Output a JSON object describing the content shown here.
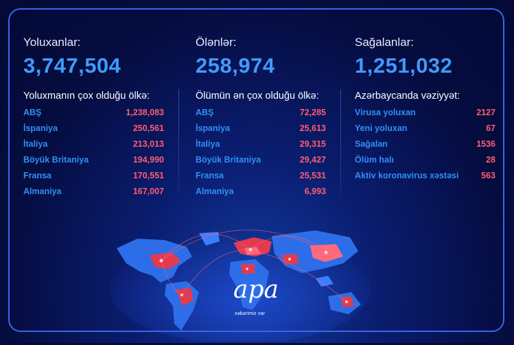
{
  "infected": {
    "label": "Yoluxanlar:",
    "total": "3,747,504",
    "subtitle": "Yoluxmanın çox olduğu ölkə:",
    "rows": [
      {
        "name": "ABŞ",
        "value": "1,238,083"
      },
      {
        "name": "İspaniya",
        "value": "250,561"
      },
      {
        "name": "İtaliya",
        "value": "213,013"
      },
      {
        "name": "Böyük Britaniya",
        "value": "194,990"
      },
      {
        "name": "Fransa",
        "value": "170,551"
      },
      {
        "name": "Almaniya",
        "value": "167,007"
      }
    ]
  },
  "deaths": {
    "label": "Ölənlər:",
    "total": "258,974",
    "subtitle": "Ölümün ən çox olduğu ölkə:",
    "rows": [
      {
        "name": "ABŞ",
        "value": "72,285"
      },
      {
        "name": "İspaniya",
        "value": "25,613"
      },
      {
        "name": "İtaliya",
        "value": "29,315"
      },
      {
        "name": "Böyük Britaniya",
        "value": "29,427"
      },
      {
        "name": "Fransa",
        "value": "25,531"
      },
      {
        "name": "Almaniya",
        "value": "6,993"
      }
    ]
  },
  "recovered": {
    "label": "Sağalanlar:",
    "total": "1,251,032",
    "subtitle": "Azərbaycanda vəziyyət:",
    "rows": [
      {
        "name": "Virusa yoluxan",
        "value": "2127"
      },
      {
        "name": "Yeni yoluxan",
        "value": "67"
      },
      {
        "name": "Sağalan",
        "value": "1536"
      },
      {
        "name": "Ölüm halı",
        "value": "28"
      },
      {
        "name": "Aktiv koronavirus xəstəsi",
        "value": "563"
      }
    ]
  },
  "brand": {
    "logo": "apa",
    "tagline": "xəbərimiz var"
  },
  "colors": {
    "accent_blue": "#3f9bff",
    "value_red": "#ff5d6c",
    "frame": "#3c66e8"
  }
}
